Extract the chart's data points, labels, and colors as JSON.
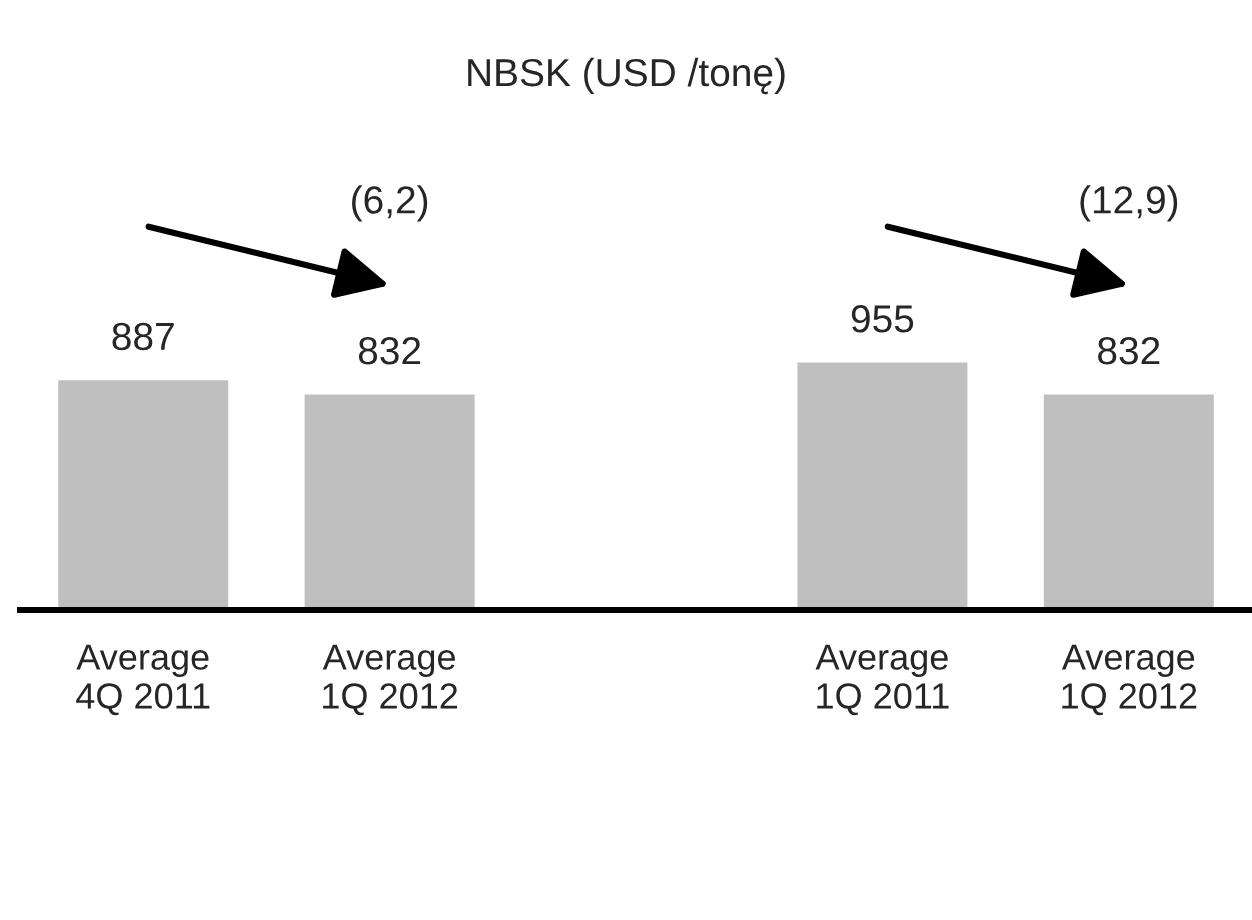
{
  "chart_data": {
    "type": "bar",
    "title": "NBSK (USD /tonę)",
    "categories": [
      "Average\n4Q 2011",
      "Average\n1Q 2012",
      null,
      "Average\n1Q 2011",
      "Average\n1Q 2012"
    ],
    "values": [
      887,
      832,
      null,
      955,
      832
    ],
    "color": "#bfbfbf",
    "data_labels": true,
    "grid": false,
    "legend": false,
    "annotations": [
      "(6,2)",
      "(12,9)"
    ]
  }
}
